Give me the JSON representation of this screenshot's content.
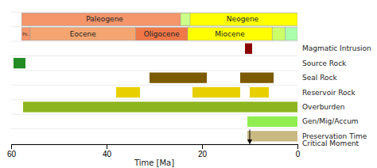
{
  "chart_data": {
    "type": "timeline",
    "xlabel": "Time [Ma]",
    "xlim": [
      60,
      0
    ],
    "xticks": [
      60,
      40,
      20,
      0
    ],
    "rows": [
      {
        "bars": [
          {
            "start": 23.0,
            "end": 57.8,
            "color": "#F4956A",
            "label": "Paleogene"
          },
          {
            "start": 0.0,
            "end": 23.0,
            "color": "#FFFF00",
            "label": "Neogene"
          },
          {
            "start": 22.5,
            "end": 24.5,
            "color": "#CCFF88"
          }
        ]
      },
      {
        "bars": [
          {
            "start": 56.0,
            "end": 57.8,
            "color": "#F4956A",
            "label": "Plc."
          },
          {
            "start": 33.9,
            "end": 56.0,
            "color": "#F4A570",
            "label": "Eocene"
          },
          {
            "start": 23.0,
            "end": 33.9,
            "color": "#F07848",
            "label": "Oligocene"
          },
          {
            "start": 5.3,
            "end": 23.0,
            "color": "#FFFF00",
            "label": "Miocene"
          },
          {
            "start": 2.6,
            "end": 5.3,
            "color": "#CCFF66"
          },
          {
            "start": 0.0,
            "end": 2.6,
            "color": "#AAFFAA"
          }
        ]
      },
      {
        "label": "Magmatic Intrusion",
        "bars": [
          {
            "start": 9.5,
            "end": 11.0,
            "color": "#8B0000"
          }
        ]
      },
      {
        "label": "Source Rock",
        "bars": [
          {
            "start": 57.0,
            "end": 59.5,
            "color": "#228B22"
          }
        ]
      },
      {
        "label": "Seal Rock",
        "bars": [
          {
            "start": 19.0,
            "end": 31.0,
            "color": "#7B5A00"
          },
          {
            "start": 5.0,
            "end": 12.0,
            "color": "#7B5A00"
          }
        ]
      },
      {
        "label": "Reservoir Rock",
        "bars": [
          {
            "start": 33.0,
            "end": 38.0,
            "color": "#E8D000"
          },
          {
            "start": 12.0,
            "end": 22.0,
            "color": "#E8D000"
          },
          {
            "start": 6.0,
            "end": 10.0,
            "color": "#E8D000"
          }
        ]
      },
      {
        "label": "Overburden",
        "bars": [
          {
            "start": 0.0,
            "end": 57.5,
            "color": "#8DB520"
          }
        ]
      },
      {
        "label": "Gen/Mig/Accum",
        "bars": [
          {
            "start": 0.0,
            "end": 10.5,
            "color": "#90EE50"
          }
        ]
      },
      {
        "label": "Preservation Time",
        "bars": [
          {
            "start": 0.0,
            "end": 10.5,
            "color": "#C8B882"
          }
        ]
      }
    ],
    "critical_moment": {
      "value": 10.0,
      "label": "Critical Moment"
    }
  }
}
